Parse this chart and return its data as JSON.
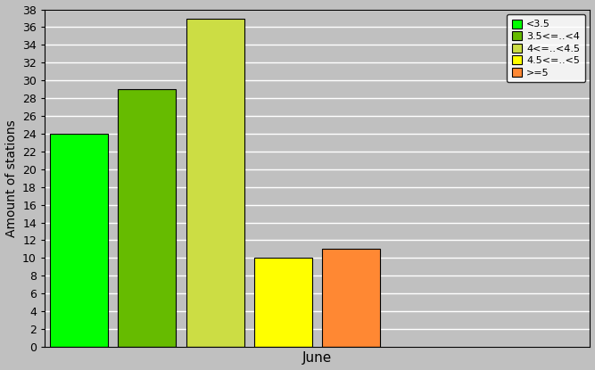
{
  "categories": [
    "<3.5",
    "3.5<=..<4",
    "4<=..<4.5",
    "4.5<=..<5",
    ">=5"
  ],
  "values": [
    24,
    29,
    37,
    10,
    11
  ],
  "colors": [
    "#00ff00",
    "#66bb00",
    "#ccdd44",
    "#ffff00",
    "#ff8833"
  ],
  "legend_labels": [
    "<3.5",
    "3.5<=..<4",
    "4<=..<4.5",
    "4.5<=..<5",
    ">=5"
  ],
  "xlabel": "June",
  "ylabel": "Amount of stations",
  "ylim": [
    0,
    38
  ],
  "yticks": [
    0,
    2,
    4,
    6,
    8,
    10,
    12,
    14,
    16,
    18,
    20,
    22,
    24,
    26,
    28,
    30,
    32,
    34,
    36,
    38
  ],
  "background_color": "#c0c0c0",
  "plot_bg_color": "#c0c0c0",
  "bar_edge_color": "#000000",
  "xlim_left": -0.5,
  "xlim_right": 7.5
}
